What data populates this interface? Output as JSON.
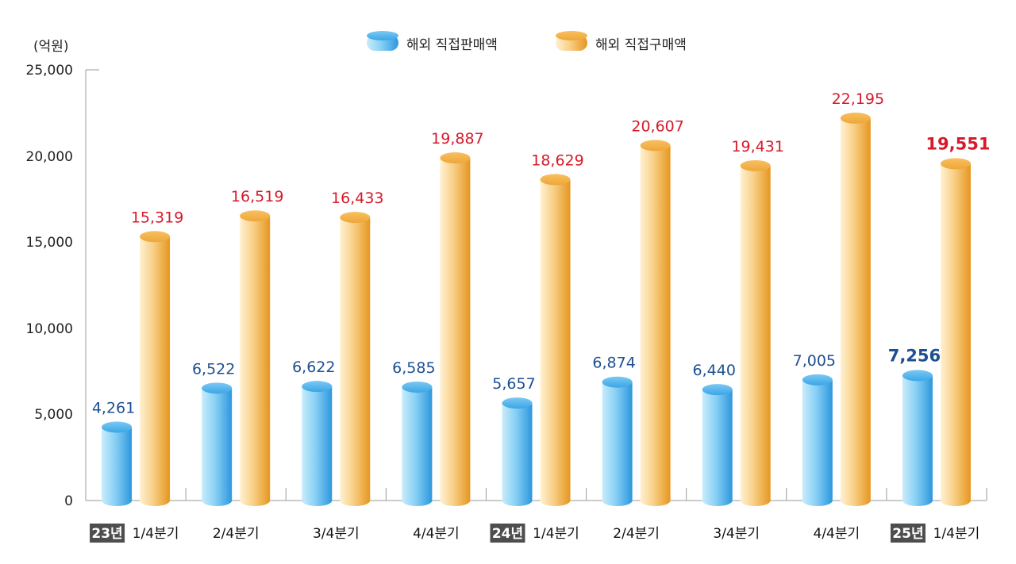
{
  "chart_data": {
    "type": "bar",
    "unit_label": "(억원)",
    "yticks": [
      "25,000",
      "20,000",
      "15,000",
      "10,000",
      "5,000",
      "0"
    ],
    "ylim": [
      0,
      25000
    ],
    "legend_position": "top-center",
    "categories": [
      {
        "year": "23년",
        "label": "1/4분기"
      },
      {
        "year": "",
        "label": "2/4분기"
      },
      {
        "year": "",
        "label": "3/4분기"
      },
      {
        "year": "",
        "label": "4/4분기"
      },
      {
        "year": "24년",
        "label": "1/4분기"
      },
      {
        "year": "",
        "label": "2/4분기"
      },
      {
        "year": "",
        "label": "3/4분기"
      },
      {
        "year": "",
        "label": "4/4분기"
      },
      {
        "year": "25년",
        "label": "1/4분기"
      }
    ],
    "series": [
      {
        "name": "해외 직접판매액",
        "color": "#3aa6e6",
        "values": [
          4261,
          6522,
          6622,
          6585,
          5657,
          6874,
          6440,
          7005,
          7256
        ],
        "labels": [
          "4,261",
          "6,522",
          "6,622",
          "6,585",
          "5,657",
          "6,874",
          "6,440",
          "7,005",
          "7,256"
        ]
      },
      {
        "name": "해외 직접구매액",
        "color": "#eea63a",
        "values": [
          15319,
          16519,
          16433,
          19887,
          18629,
          20607,
          19431,
          22195,
          19551
        ],
        "labels": [
          "15,319",
          "16,519",
          "16,433",
          "19,887",
          "18,629",
          "20,607",
          "19,431",
          "22,195",
          "19,551"
        ]
      }
    ],
    "highlight_index": 8
  }
}
